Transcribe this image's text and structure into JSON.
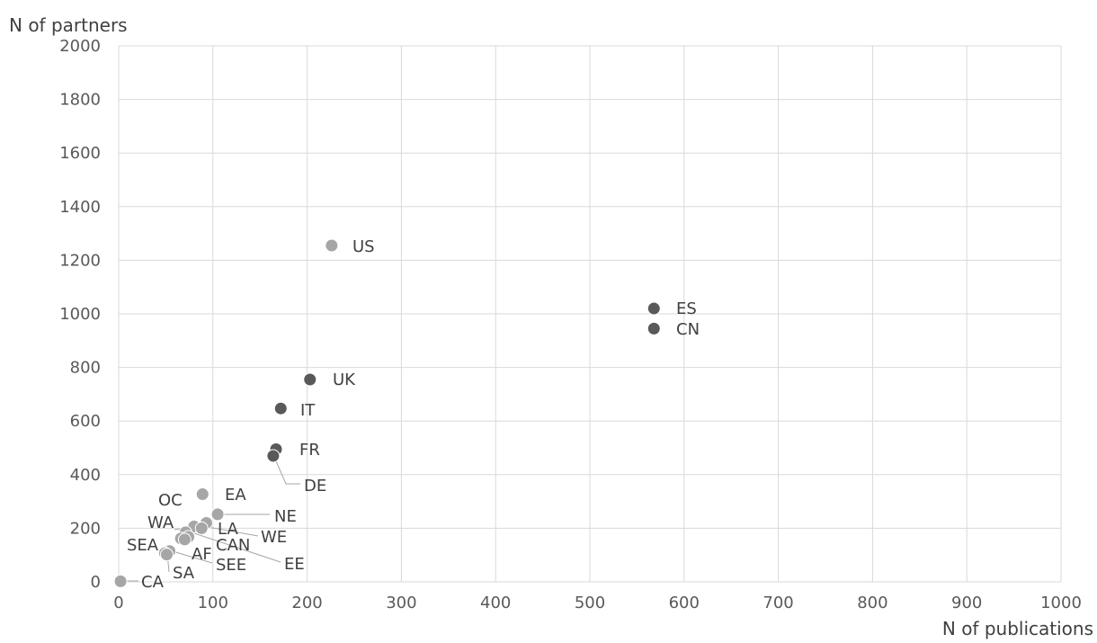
{
  "chart_data": {
    "type": "scatter",
    "title": "",
    "xlabel": "N of publications",
    "ylabel": "N of partners",
    "xlim": [
      0,
      1000
    ],
    "ylim": [
      0,
      2000
    ],
    "x_ticks": [
      0,
      100,
      200,
      300,
      400,
      500,
      600,
      700,
      800,
      900,
      1000
    ],
    "y_ticks": [
      0,
      200,
      400,
      600,
      800,
      1000,
      1200,
      1400,
      1600,
      1800,
      2000
    ],
    "grid": true,
    "colors": {
      "dark": "#595959",
      "light": "#a6a6a6"
    },
    "points": [
      {
        "label": "US",
        "x": 226,
        "y": 1255,
        "shade": "light"
      },
      {
        "label": "ES",
        "x": 568,
        "y": 1020,
        "shade": "dark"
      },
      {
        "label": "CN",
        "x": 568,
        "y": 945,
        "shade": "dark"
      },
      {
        "label": "UK",
        "x": 203,
        "y": 755,
        "shade": "dark"
      },
      {
        "label": "IT",
        "x": 172,
        "y": 647,
        "shade": "dark"
      },
      {
        "label": "FR",
        "x": 167,
        "y": 495,
        "shade": "dark"
      },
      {
        "label": "DE",
        "x": 164,
        "y": 470,
        "shade": "dark"
      },
      {
        "label": "EA",
        "x": 89,
        "y": 327,
        "shade": "light"
      },
      {
        "label": "NE",
        "x": 105,
        "y": 252,
        "shade": "light"
      },
      {
        "label": "OC",
        "x": 93,
        "y": 220,
        "shade": "light"
      },
      {
        "label": "WA",
        "x": 80,
        "y": 207,
        "shade": "light"
      },
      {
        "label": "LA",
        "x": 88,
        "y": 200,
        "shade": "light"
      },
      {
        "label": "WE",
        "x": 71,
        "y": 185,
        "shade": "light"
      },
      {
        "label": "CAN",
        "x": 74,
        "y": 168,
        "shade": "light"
      },
      {
        "label": "AF",
        "x": 66,
        "y": 162,
        "shade": "light"
      },
      {
        "label": "EE",
        "x": 70,
        "y": 158,
        "shade": "light"
      },
      {
        "label": "SEA",
        "x": 54,
        "y": 115,
        "shade": "light"
      },
      {
        "label": "SEE",
        "x": 49,
        "y": 107,
        "shade": "light"
      },
      {
        "label": "SA",
        "x": 51,
        "y": 102,
        "shade": "light"
      },
      {
        "label": "CA",
        "x": 2,
        "y": 2,
        "shade": "light"
      }
    ]
  }
}
